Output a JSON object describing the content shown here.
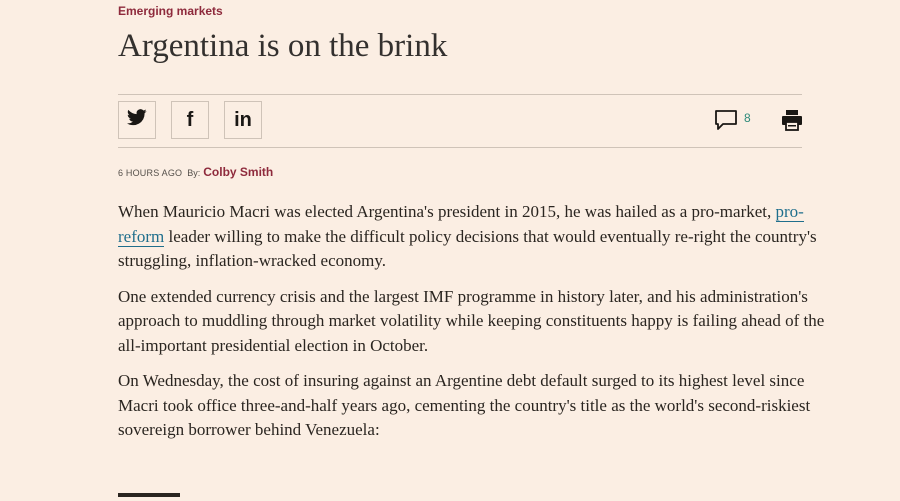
{
  "article": {
    "section": "Emerging markets",
    "title": "Argentina is on the brink",
    "timestamp": "6 HOURS AGO",
    "by_label": "By:",
    "author": "Colby Smith",
    "paragraphs": {
      "p1": {
        "before": "When Mauricio Macri was elected Argentina's president in 2015, he was hailed as a pro-market, ",
        "link": "pro-reform",
        "after": " leader willing to make the difficult policy decisions that would eventually re-right the country's struggling, inflation-wracked economy."
      },
      "p2": "One extended currency crisis and the largest IMF programme in history later, and his administration's approach to muddling through market volatility while keeping constituents happy is failing ahead of the all-important presidential election in October.",
      "p3": "On Wednesday, the cost of insuring against an Argentine debt default surged to its highest level since Macri took office three-and-half years ago, cementing the country's title as the world's second-riskiest sovereign borrower behind Venezuela:"
    }
  },
  "toolbar": {
    "share_twitter_icon": "twitter-icon",
    "share_facebook_icon": "facebook-icon",
    "share_linkedin_icon": "linkedin-icon",
    "facebook_glyph": "f",
    "linkedin_glyph": "in",
    "comment_count": "8"
  },
  "colors": {
    "background": "#fbeee3",
    "accent": "#8e2a3c",
    "link": "#1f6e8c",
    "comment_count": "#2e8a7a"
  }
}
